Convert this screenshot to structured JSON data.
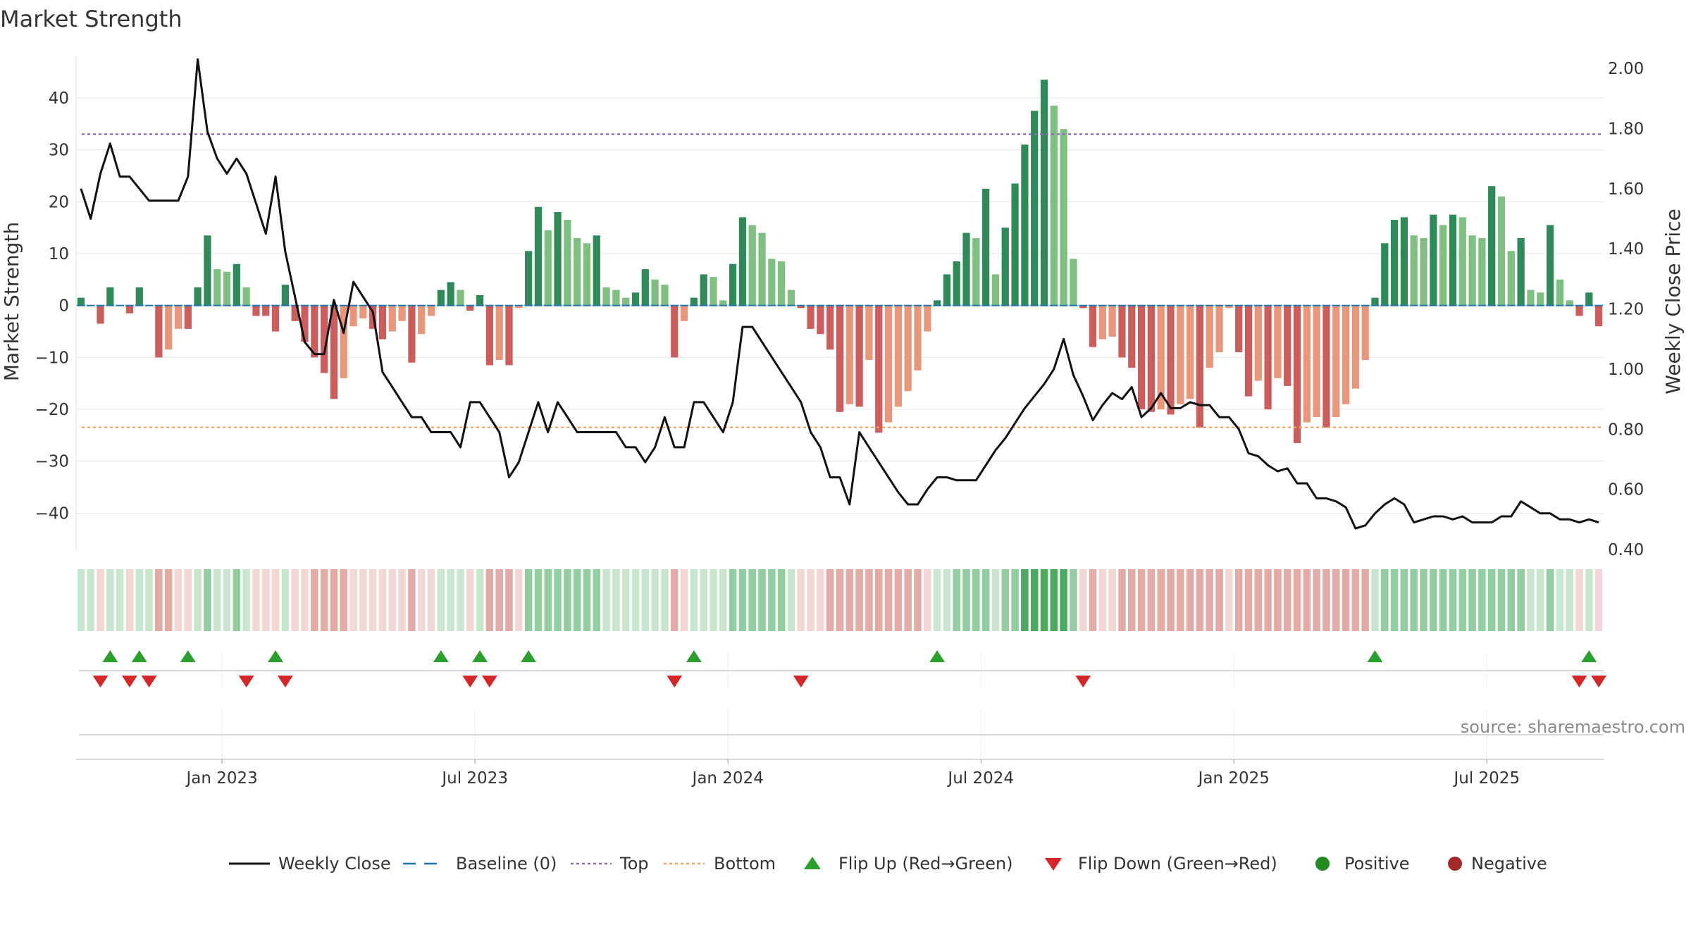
{
  "chart_data": {
    "type": "bar",
    "title": "Market Strength",
    "ylabel_left": "Market Strength",
    "ylabel_right": "Weekly Close Price",
    "source": "source: sharemaestro.com",
    "ylim_left": [
      -47.0,
      48.0
    ],
    "ylim_right": [
      0.4,
      2.04
    ],
    "yticks_left": [
      40,
      30,
      20,
      10,
      0,
      -10,
      -20,
      -30,
      -40
    ],
    "ytick_labels_left": [
      "40",
      "30",
      "20",
      "10",
      "0",
      "−10",
      "−20",
      "−30",
      "−40"
    ],
    "yticks_right": [
      2.0,
      1.8,
      1.6,
      1.4,
      1.2,
      1.0,
      0.8,
      0.6,
      0.4
    ],
    "ytick_labels_right": [
      "2.00",
      "1.80",
      "1.60",
      "1.40",
      "1.20",
      "1.00",
      "0.80",
      "0.60",
      "0.40"
    ],
    "x_ticks": [
      {
        "week": 15,
        "label": "Jan 2023"
      },
      {
        "week": 41,
        "label": "Jul 2023"
      },
      {
        "week": 67,
        "label": "Jan 2024"
      },
      {
        "week": 93,
        "label": "Jul 2024"
      },
      {
        "week": 119,
        "label": "Jan 2025"
      },
      {
        "week": 145,
        "label": "Jul 2025"
      }
    ],
    "top_threshold": 33,
    "bottom_threshold": -23.5,
    "baseline": 0,
    "strength": [
      1.5,
      0,
      -3.5,
      3.5,
      0,
      -1.5,
      3.5,
      0,
      -10,
      -8.5,
      -4.5,
      -4.5,
      3.5,
      13.5,
      7,
      6.5,
      8,
      3.5,
      -2,
      -2,
      -5,
      4,
      -3,
      -7,
      -10,
      -13,
      -18,
      -14,
      -4,
      -2.5,
      -4.5,
      -6.5,
      -5,
      -3,
      -11,
      -5.5,
      -2,
      3,
      4.5,
      3,
      -1,
      2,
      -11.5,
      -10.5,
      -11.5,
      -0.5,
      10.5,
      19,
      14.5,
      18,
      16.5,
      13,
      12,
      13.5,
      3.5,
      3,
      1.5,
      2.5,
      7,
      5,
      4,
      -10,
      -3,
      1.5,
      6,
      5.5,
      1,
      8,
      17,
      15.5,
      14,
      9,
      8.5,
      3,
      -0.5,
      -4.5,
      -5.5,
      -8.5,
      -20.5,
      -19,
      -19.5,
      -10.5,
      -24.5,
      -22.5,
      -19.5,
      -16.5,
      -12.5,
      -5,
      1,
      6,
      8.5,
      14,
      13,
      22.5,
      6,
      15,
      23.5,
      31,
      37.5,
      43.5,
      38.5,
      34,
      9,
      -0.5,
      -8,
      -6.5,
      -6,
      -10,
      -12,
      -20,
      -20.5,
      -20,
      -21,
      -19,
      -18,
      -23.5,
      -12,
      -9,
      -0.5,
      -9,
      -17.5,
      -14.5,
      -20,
      -14,
      -15.5,
      -26.5,
      -22.5,
      -21.5,
      -23.5,
      -21.5,
      -19,
      -16,
      -10.5,
      1.5,
      12,
      16.5,
      17,
      13.5,
      13,
      17.5,
      15.5,
      17.5,
      17,
      13.5,
      13,
      23,
      21,
      10.5,
      13,
      3,
      2.5,
      15.5,
      5,
      1,
      -2,
      2.5,
      -4
    ],
    "close": [
      1.6,
      1.5,
      1.65,
      1.75,
      1.64,
      1.64,
      1.6,
      1.56,
      1.56,
      1.56,
      1.56,
      1.64,
      2.03,
      1.79,
      1.7,
      1.65,
      1.7,
      1.65,
      1.55,
      1.45,
      1.64,
      1.39,
      1.24,
      1.09,
      1.05,
      1.05,
      1.23,
      1.12,
      1.29,
      1.24,
      1.19,
      0.99,
      0.94,
      0.89,
      0.84,
      0.84,
      0.79,
      0.79,
      0.79,
      0.74,
      0.89,
      0.89,
      0.84,
      0.79,
      0.64,
      0.69,
      0.79,
      0.89,
      0.79,
      0.89,
      0.84,
      0.79,
      0.79,
      0.79,
      0.79,
      0.79,
      0.74,
      0.74,
      0.69,
      0.74,
      0.84,
      0.74,
      0.74,
      0.89,
      0.89,
      0.84,
      0.79,
      0.89,
      1.14,
      1.14,
      1.09,
      1.04,
      0.99,
      0.94,
      0.89,
      0.79,
      0.74,
      0.64,
      0.64,
      0.55,
      0.79,
      0.74,
      0.69,
      0.64,
      0.59,
      0.55,
      0.55,
      0.6,
      0.64,
      0.64,
      0.63,
      0.63,
      0.63,
      0.68,
      0.73,
      0.77,
      0.82,
      0.87,
      0.91,
      0.95,
      1.0,
      1.1,
      0.98,
      0.91,
      0.83,
      0.88,
      0.92,
      0.9,
      0.94,
      0.84,
      0.87,
      0.92,
      0.87,
      0.87,
      0.89,
      0.88,
      0.88,
      0.84,
      0.84,
      0.8,
      0.72,
      0.71,
      0.68,
      0.66,
      0.67,
      0.62,
      0.62,
      0.57,
      0.57,
      0.56,
      0.54,
      0.47,
      0.48,
      0.52,
      0.55,
      0.57,
      0.55,
      0.49,
      0.5,
      0.51,
      0.51,
      0.5,
      0.51,
      0.49,
      0.49,
      0.49,
      0.51,
      0.51,
      0.56,
      0.54,
      0.52,
      0.52,
      0.5,
      0.5,
      0.49,
      0.5,
      0.49
    ],
    "flip_up_weeks": [
      3,
      6,
      11,
      20,
      37,
      41,
      46,
      63,
      88,
      133,
      155
    ],
    "flip_down_weeks": [
      2,
      5,
      7,
      17,
      21,
      40,
      42,
      61,
      74,
      103,
      154,
      156
    ],
    "legend": [
      {
        "key": "line",
        "label": "Weekly Close"
      },
      {
        "key": "baseline",
        "label": "Baseline (0)"
      },
      {
        "key": "top",
        "label": "Top"
      },
      {
        "key": "bottom",
        "label": "Bottom"
      },
      {
        "key": "flipup",
        "label": "Flip Up (Red→Green)"
      },
      {
        "key": "flipdown",
        "label": "Flip Down (Green→Red)"
      },
      {
        "key": "positive",
        "label": "Positive"
      },
      {
        "key": "negative",
        "label": "Negative"
      }
    ],
    "colors": {
      "pos_strong": "#2e8b57",
      "pos_light": "#7fbf7f",
      "neg_strong": "#cd5c5c",
      "neg_light": "#e9967a",
      "line": "#111111",
      "baseline": "#1f77b4",
      "top": "#9467bd",
      "bottom": "#f4a460",
      "flip_up": "#2ca02c",
      "flip_down": "#d62728",
      "positive": "#228b22",
      "negative": "#a52a2a",
      "grid": "#e6e6e6"
    }
  }
}
